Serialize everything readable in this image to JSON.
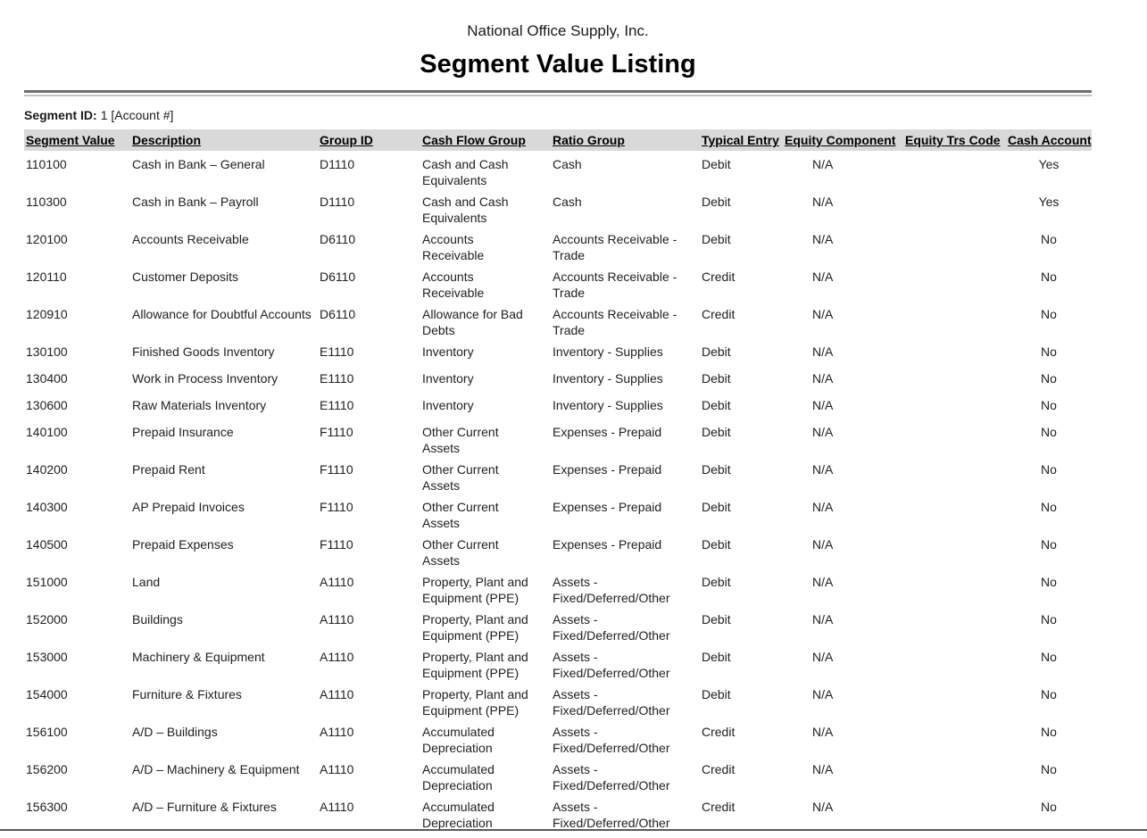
{
  "header": {
    "company": "National Office Supply, Inc.",
    "title": "Segment Value Listing"
  },
  "segment": {
    "label": "Segment ID:",
    "value": "1 [Account #]"
  },
  "table": {
    "columns": [
      "Segment Value",
      "Description",
      "Group ID",
      "Cash Flow Group",
      "Ratio Group",
      "Typical Entry",
      "Equity Component",
      "Equity Trs Code",
      "Cash Account"
    ],
    "rows": [
      [
        "110100",
        "Cash in Bank – General",
        "D1110",
        "Cash and Cash Equivalents",
        "Cash",
        "Debit",
        "N/A",
        "",
        "Yes"
      ],
      [
        "110300",
        "Cash in Bank – Payroll",
        "D1110",
        "Cash and Cash Equivalents",
        "Cash",
        "Debit",
        "N/A",
        "",
        "Yes"
      ],
      [
        "120100",
        "Accounts Receivable",
        "D6110",
        "Accounts Receivable",
        "Accounts Receivable - Trade",
        "Debit",
        "N/A",
        "",
        "No"
      ],
      [
        "120110",
        "Customer Deposits",
        "D6110",
        "Accounts Receivable",
        "Accounts Receivable - Trade",
        "Credit",
        "N/A",
        "",
        "No"
      ],
      [
        "120910",
        "Allowance for Doubtful Accounts",
        "D6110",
        "Allowance for Bad Debts",
        "Accounts Receivable - Trade",
        "Credit",
        "N/A",
        "",
        "No"
      ],
      [
        "130100",
        "Finished Goods Inventory",
        "E1110",
        "Inventory",
        "Inventory - Supplies",
        "Debit",
        "N/A",
        "",
        "No"
      ],
      [
        "130400",
        "Work in Process Inventory",
        "E1110",
        "Inventory",
        "Inventory - Supplies",
        "Debit",
        "N/A",
        "",
        "No"
      ],
      [
        "130600",
        "Raw Materials Inventory",
        "E1110",
        "Inventory",
        "Inventory - Supplies",
        "Debit",
        "N/A",
        "",
        "No"
      ],
      [
        "140100",
        "Prepaid Insurance",
        "F1110",
        "Other Current Assets",
        "Expenses - Prepaid",
        "Debit",
        "N/A",
        "",
        "No"
      ],
      [
        "140200",
        "Prepaid Rent",
        "F1110",
        "Other Current Assets",
        "Expenses - Prepaid",
        "Debit",
        "N/A",
        "",
        "No"
      ],
      [
        "140300",
        "AP Prepaid Invoices",
        "F1110",
        "Other Current Assets",
        "Expenses - Prepaid",
        "Debit",
        "N/A",
        "",
        "No"
      ],
      [
        "140500",
        "Prepaid Expenses",
        "F1110",
        "Other Current Assets",
        "Expenses - Prepaid",
        "Debit",
        "N/A",
        "",
        "No"
      ],
      [
        "151000",
        "Land",
        "A1110",
        "Property, Plant and Equipment (PPE)",
        "Assets - Fixed/Deferred/Other",
        "Debit",
        "N/A",
        "",
        "No"
      ],
      [
        "152000",
        "Buildings",
        "A1110",
        "Property, Plant and Equipment (PPE)",
        "Assets - Fixed/Deferred/Other",
        "Debit",
        "N/A",
        "",
        "No"
      ],
      [
        "153000",
        "Machinery & Equipment",
        "A1110",
        "Property, Plant and Equipment (PPE)",
        "Assets - Fixed/Deferred/Other",
        "Debit",
        "N/A",
        "",
        "No"
      ],
      [
        "154000",
        "Furniture & Fixtures",
        "A1110",
        "Property, Plant and Equipment (PPE)",
        "Assets - Fixed/Deferred/Other",
        "Debit",
        "N/A",
        "",
        "No"
      ],
      [
        "156100",
        "A/D – Buildings",
        "A1110",
        "Accumulated Depreciation",
        "Assets - Fixed/Deferred/Other",
        "Credit",
        "N/A",
        "",
        "No"
      ],
      [
        "156200",
        "A/D – Machinery & Equipment",
        "A1110",
        "Accumulated Depreciation",
        "Assets - Fixed/Deferred/Other",
        "Credit",
        "N/A",
        "",
        "No"
      ],
      [
        "156300",
        "A/D – Furniture & Fixtures",
        "A1110",
        "Accumulated Depreciation",
        "Assets - Fixed/Deferred/Other",
        "Credit",
        "N/A",
        "",
        "No"
      ]
    ]
  }
}
